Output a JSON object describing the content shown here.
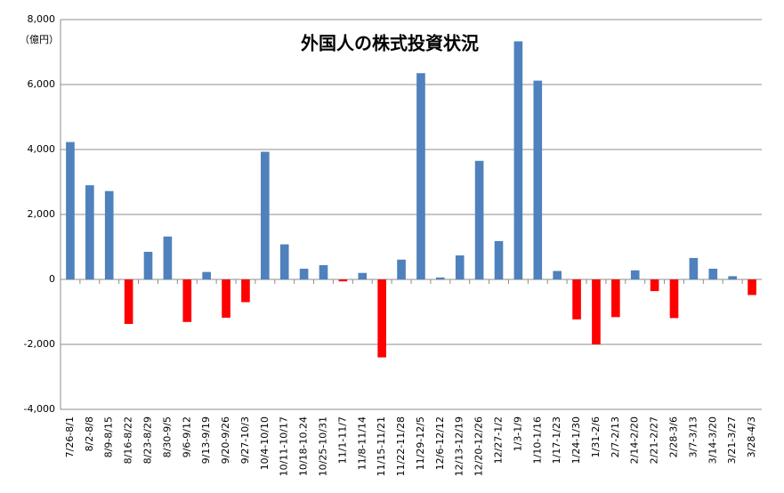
{
  "chart_data": {
    "type": "bar",
    "title": "外国人の株式投資状況",
    "y_unit_label": "（億円）",
    "categories": [
      "7/26-8/1",
      "8/2-8/8",
      "8/9-8/15",
      "8/16-8/22",
      "8/23-8/29",
      "8/30-9/5",
      "9/6-9/12",
      "9/13-9/19",
      "9/20-9/26",
      "9/27-10/3",
      "10/4-10/10",
      "10/11-10/17",
      "10/18-10.24",
      "10/25-10/31",
      "11/1-11/7",
      "11/8-11/14",
      "11/15-11/21",
      "11/22-11/28",
      "11/29-12/5",
      "12/6-12/12",
      "12/13-12/19",
      "12/20-12/26",
      "12/27-1/2",
      "1/3-1/9",
      "1/10-1/16",
      "1/17-1/23",
      "1/24-1/30",
      "1/31-2/6",
      "2/7-2/13",
      "2/14-2/20",
      "2/21-2/27",
      "2/28-3/6",
      "3/7-3/13",
      "3/14-3/20",
      "3/21-3/27",
      "3/28-4/3"
    ],
    "values": [
      4230,
      2900,
      2720,
      -1370,
      850,
      1320,
      -1310,
      230,
      -1180,
      -700,
      3930,
      1080,
      330,
      440,
      -60,
      200,
      -2400,
      610,
      6350,
      60,
      740,
      3650,
      1180,
      7330,
      6120,
      260,
      -1230,
      -2000,
      -1160,
      280,
      -360,
      -1190,
      660,
      330,
      100,
      -480
    ],
    "color": "#4f81bd",
    "negative_color": "#ff0000",
    "ylim": [
      -4000,
      8000
    ],
    "yticks": [
      {
        "value": -4000,
        "label": "-4,000"
      },
      {
        "value": -2000,
        "label": "-2,000"
      },
      0,
      {
        "value": 2000,
        "label": "2,000"
      },
      {
        "value": 4000,
        "label": "4,000"
      },
      {
        "value": 6000,
        "label": "6,000"
      },
      {
        "value": 8000,
        "label": "8,000"
      }
    ],
    "grid": true
  }
}
